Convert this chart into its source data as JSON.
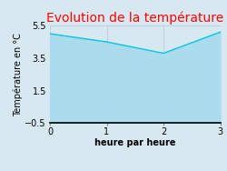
{
  "title": "Evolution de la température",
  "title_color": "#ff0000",
  "xlabel": "heure par heure",
  "ylabel": "Température en °C",
  "xlim": [
    0,
    3
  ],
  "ylim": [
    -0.5,
    5.5
  ],
  "xticks": [
    0,
    1,
    2,
    3
  ],
  "yticks": [
    -0.5,
    1.5,
    3.5,
    5.5
  ],
  "x": [
    0,
    1,
    2,
    3
  ],
  "y": [
    5.0,
    4.5,
    3.8,
    5.1
  ],
  "line_color": "#00c8e0",
  "fill_color": "#aadcee",
  "fill_alpha": 1.0,
  "background_color": "#d8e8f0",
  "plot_background": "#d8e8f0",
  "figsize": [
    2.5,
    1.88
  ],
  "dpi": 100,
  "title_fontsize": 10,
  "axis_label_fontsize": 7,
  "tick_fontsize": 7
}
